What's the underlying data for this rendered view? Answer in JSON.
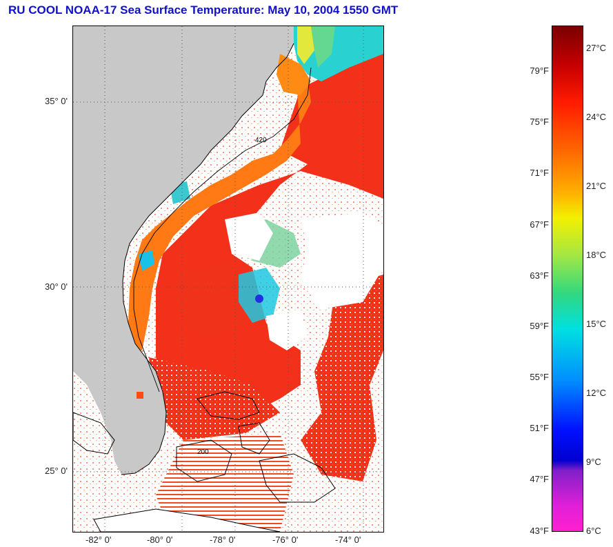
{
  "title": "RU COOL  NOAA-17  Sea Surface Temperature:  May 10, 2004 1550 GMT",
  "map": {
    "lat_labels": [
      "35° 0'",
      "30° 0'",
      "25° 0'"
    ],
    "lon_labels": [
      "-82° 0'",
      "-80° 0'",
      "-78° 0'",
      "-76° 0'",
      "-74° 0'"
    ],
    "colors": {
      "land": "#c8c8c8",
      "cloud": "#ffffff",
      "warm": "#f52a14",
      "orange": "#ff7a10",
      "cool": "#19c8e0",
      "cold": "#2030e0",
      "title": "#1010c8"
    },
    "contour_label_1": "420",
    "contour_label_2": "200"
  },
  "colorbar": {
    "fahrenheit": [
      "79°F",
      "75°F",
      "71°F",
      "67°F",
      "63°F",
      "59°F",
      "55°F",
      "51°F",
      "47°F",
      "43°F"
    ],
    "celsius": [
      "27°C",
      "24°C",
      "21°C",
      "18°C",
      "15°C",
      "12°C",
      "9°C",
      "6°C"
    ]
  }
}
